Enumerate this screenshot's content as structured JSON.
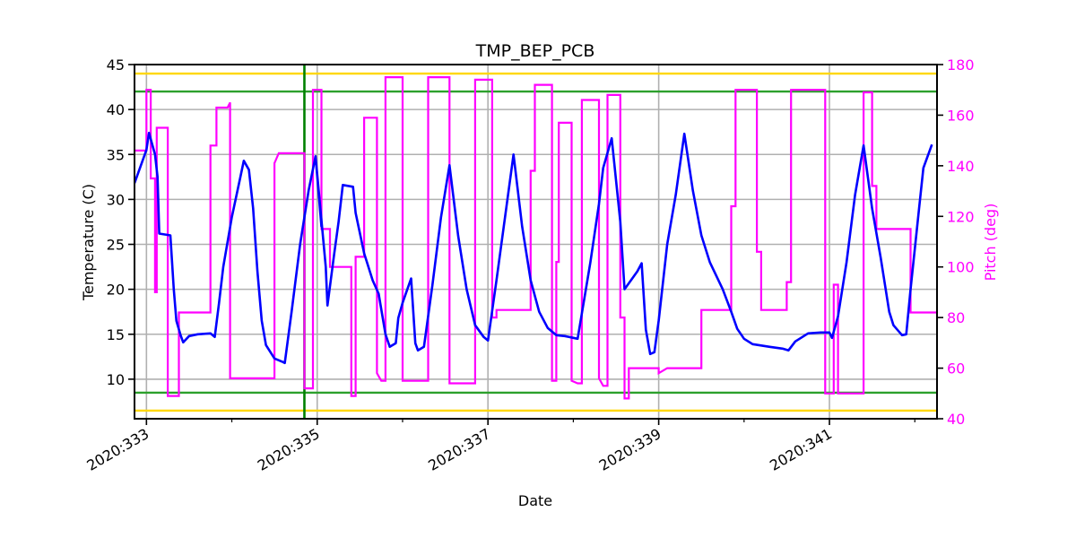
{
  "chart_data": {
    "type": "line",
    "title": "TMP_BEP_PCB",
    "xlabel": "Date",
    "ylabel": "Temperature (C)",
    "ylabel_right": "Pitch (deg)",
    "xlim": [
      332.86,
      342.26
    ],
    "ylim": [
      5.6,
      45
    ],
    "ylim_right": [
      40,
      180
    ],
    "grid": true,
    "legend": null,
    "x_ticks": [
      {
        "value": 333,
        "label": "2020:333"
      },
      {
        "value": 335,
        "label": "2020:335"
      },
      {
        "value": 337,
        "label": "2020:337"
      },
      {
        "value": 339,
        "label": "2020:339"
      },
      {
        "value": 341,
        "label": "2020:341"
      }
    ],
    "x_minor_ticks": [
      334,
      336,
      338,
      340,
      342
    ],
    "y_ticks": [
      10,
      15,
      20,
      25,
      30,
      35,
      40,
      45
    ],
    "y_ticks_right": [
      40,
      60,
      80,
      100,
      120,
      140,
      160,
      180
    ],
    "reference_lines": [
      {
        "name": "yellow-limit-high",
        "axis": "y",
        "value": 44.0,
        "color": "#ffd700"
      },
      {
        "name": "green-limit-high",
        "axis": "y",
        "value": 42.0,
        "color": "#2ca02c"
      },
      {
        "name": "green-limit-low",
        "axis": "y",
        "value": 8.5,
        "color": "#2ca02c"
      },
      {
        "name": "yellow-limit-low",
        "axis": "y",
        "value": 6.5,
        "color": "#ffd700"
      },
      {
        "name": "now-marker",
        "axis": "x",
        "value": 334.85,
        "color": "#008000"
      }
    ],
    "series": [
      {
        "name": "TMP_BEP_PCB",
        "axis": "left",
        "color": "#0000ff",
        "points": [
          [
            332.86,
            31.8
          ],
          [
            333.0,
            35.5
          ],
          [
            333.03,
            37.4
          ],
          [
            333.1,
            35.0
          ],
          [
            333.13,
            32.5
          ],
          [
            333.15,
            26.2
          ],
          [
            333.28,
            26.0
          ],
          [
            333.32,
            20.0
          ],
          [
            333.35,
            16.5
          ],
          [
            333.4,
            14.9
          ],
          [
            333.43,
            14.1
          ],
          [
            333.5,
            14.8
          ],
          [
            333.6,
            15.0
          ],
          [
            333.75,
            15.1
          ],
          [
            333.8,
            14.7
          ],
          [
            333.85,
            18.5
          ],
          [
            333.9,
            22.5
          ],
          [
            334.0,
            28.0
          ],
          [
            334.1,
            32.5
          ],
          [
            334.14,
            34.3
          ],
          [
            334.2,
            33.3
          ],
          [
            334.25,
            29.0
          ],
          [
            334.3,
            22.0
          ],
          [
            334.35,
            16.5
          ],
          [
            334.4,
            13.8
          ],
          [
            334.5,
            12.3
          ],
          [
            334.6,
            11.9
          ],
          [
            334.62,
            11.8
          ],
          [
            334.7,
            17.5
          ],
          [
            334.8,
            25.0
          ],
          [
            334.9,
            31.0
          ],
          [
            334.98,
            34.8
          ],
          [
            335.05,
            27.0
          ],
          [
            334.98,
            34.8
          ],
          [
            335.1,
            22.5
          ],
          [
            335.12,
            18.2
          ],
          [
            335.2,
            24.0
          ],
          [
            335.25,
            27.5
          ],
          [
            335.3,
            31.6
          ],
          [
            335.42,
            31.4
          ],
          [
            335.45,
            28.5
          ],
          [
            335.55,
            24.0
          ],
          [
            335.65,
            21.0
          ],
          [
            335.72,
            19.5
          ],
          [
            335.8,
            15.0
          ],
          [
            335.85,
            13.6
          ],
          [
            335.92,
            14.0
          ],
          [
            335.95,
            16.8
          ],
          [
            336.0,
            18.5
          ],
          [
            336.1,
            21.2
          ],
          [
            336.15,
            14.0
          ],
          [
            336.18,
            13.2
          ],
          [
            336.25,
            13.6
          ],
          [
            336.35,
            20.5
          ],
          [
            336.45,
            28.0
          ],
          [
            336.55,
            33.8
          ],
          [
            336.65,
            26.0
          ],
          [
            336.75,
            20.0
          ],
          [
            336.85,
            16.0
          ],
          [
            336.95,
            14.7
          ],
          [
            337.0,
            14.3
          ],
          [
            337.1,
            21.0
          ],
          [
            337.2,
            28.0
          ],
          [
            337.3,
            35.0
          ],
          [
            337.4,
            27.0
          ],
          [
            337.5,
            21.0
          ],
          [
            337.6,
            17.5
          ],
          [
            337.7,
            15.7
          ],
          [
            337.8,
            14.9
          ],
          [
            337.9,
            14.8
          ],
          [
            338.05,
            14.5
          ],
          [
            338.2,
            23.0
          ],
          [
            338.3,
            29.5
          ],
          [
            338.35,
            33.5
          ],
          [
            338.45,
            36.8
          ],
          [
            338.55,
            27.5
          ],
          [
            338.6,
            20.0
          ],
          [
            338.75,
            22.0
          ],
          [
            338.8,
            22.9
          ],
          [
            338.85,
            15.5
          ],
          [
            338.9,
            12.8
          ],
          [
            338.95,
            13.0
          ],
          [
            339.0,
            16.5
          ],
          [
            339.1,
            25.0
          ],
          [
            339.2,
            30.5
          ],
          [
            339.3,
            37.3
          ],
          [
            339.4,
            31.0
          ],
          [
            339.5,
            26.0
          ],
          [
            339.6,
            23.0
          ],
          [
            339.75,
            20.0
          ],
          [
            339.85,
            17.5
          ],
          [
            339.92,
            15.6
          ],
          [
            340.0,
            14.5
          ],
          [
            340.1,
            13.9
          ],
          [
            340.3,
            13.6
          ],
          [
            340.45,
            13.4
          ],
          [
            340.52,
            13.2
          ],
          [
            340.6,
            14.2
          ],
          [
            340.75,
            15.1
          ],
          [
            340.9,
            15.2
          ],
          [
            341.0,
            15.2
          ],
          [
            341.03,
            14.6
          ],
          [
            341.1,
            17.0
          ],
          [
            341.2,
            23.0
          ],
          [
            341.3,
            30.5
          ],
          [
            341.4,
            36.0
          ],
          [
            341.5,
            29.0
          ],
          [
            341.6,
            23.5
          ],
          [
            341.7,
            17.5
          ],
          [
            341.75,
            16.0
          ],
          [
            341.85,
            14.9
          ],
          [
            341.9,
            15.0
          ],
          [
            341.95,
            20.0
          ],
          [
            342.05,
            29.0
          ],
          [
            342.1,
            33.5
          ],
          [
            342.2,
            36.1
          ]
        ],
        "note": "approximate trace"
      },
      {
        "name": "Pitch",
        "axis": "right",
        "color": "#ff00ff",
        "points": [
          [
            332.86,
            146
          ],
          [
            333.0,
            146
          ],
          [
            333.0,
            170
          ],
          [
            333.05,
            170
          ],
          [
            333.05,
            135
          ],
          [
            333.1,
            135
          ],
          [
            333.1,
            90
          ],
          [
            333.12,
            90
          ],
          [
            333.12,
            155
          ],
          [
            333.25,
            155
          ],
          [
            333.25,
            49
          ],
          [
            333.38,
            49
          ],
          [
            333.38,
            82
          ],
          [
            333.75,
            82
          ],
          [
            333.75,
            148
          ],
          [
            333.82,
            148
          ],
          [
            333.82,
            163
          ],
          [
            333.95,
            163
          ],
          [
            333.98,
            165
          ],
          [
            333.98,
            56
          ],
          [
            334.5,
            56
          ],
          [
            334.5,
            141
          ],
          [
            334.55,
            145
          ],
          [
            334.85,
            145
          ],
          [
            334.85,
            52
          ],
          [
            334.95,
            52
          ],
          [
            334.95,
            170
          ],
          [
            335.05,
            170
          ],
          [
            335.05,
            115
          ],
          [
            335.15,
            115
          ],
          [
            335.15,
            100
          ],
          [
            335.4,
            100
          ],
          [
            335.4,
            49
          ],
          [
            335.45,
            49
          ],
          [
            335.45,
            104
          ],
          [
            335.55,
            104
          ],
          [
            335.55,
            159
          ],
          [
            335.7,
            159
          ],
          [
            335.7,
            58
          ],
          [
            335.75,
            55
          ],
          [
            335.8,
            55
          ],
          [
            335.8,
            175
          ],
          [
            336.0,
            175
          ],
          [
            336.0,
            55
          ],
          [
            336.3,
            55
          ],
          [
            336.3,
            175
          ],
          [
            336.55,
            175
          ],
          [
            336.55,
            54
          ],
          [
            336.85,
            54
          ],
          [
            336.85,
            174
          ],
          [
            337.05,
            174
          ],
          [
            337.05,
            80
          ],
          [
            337.1,
            80
          ],
          [
            337.1,
            83
          ],
          [
            337.5,
            83
          ],
          [
            337.5,
            138
          ],
          [
            337.55,
            138
          ],
          [
            337.55,
            172
          ],
          [
            337.75,
            172
          ],
          [
            337.75,
            55
          ],
          [
            337.8,
            55
          ],
          [
            337.8,
            102
          ],
          [
            337.83,
            102
          ],
          [
            337.83,
            157
          ],
          [
            337.98,
            157
          ],
          [
            337.98,
            55
          ],
          [
            338.05,
            54
          ],
          [
            338.1,
            54
          ],
          [
            338.1,
            166
          ],
          [
            338.3,
            166
          ],
          [
            338.3,
            56
          ],
          [
            338.35,
            53
          ],
          [
            338.4,
            53
          ],
          [
            338.4,
            168
          ],
          [
            338.55,
            168
          ],
          [
            338.55,
            80
          ],
          [
            338.6,
            80
          ],
          [
            338.6,
            48
          ],
          [
            338.65,
            48
          ],
          [
            338.65,
            60
          ],
          [
            339.0,
            60
          ],
          [
            339.0,
            58
          ],
          [
            339.1,
            60
          ],
          [
            339.5,
            60
          ],
          [
            339.5,
            83
          ],
          [
            339.85,
            83
          ],
          [
            339.85,
            124
          ],
          [
            339.9,
            124
          ],
          [
            339.9,
            170
          ],
          [
            340.15,
            170
          ],
          [
            340.15,
            106
          ],
          [
            340.2,
            106
          ],
          [
            340.2,
            83
          ],
          [
            340.5,
            83
          ],
          [
            340.5,
            94
          ],
          [
            340.55,
            94
          ],
          [
            340.55,
            170
          ],
          [
            340.95,
            170
          ],
          [
            340.95,
            50
          ],
          [
            341.0,
            50
          ],
          [
            341.0,
            50
          ],
          [
            341.05,
            50
          ],
          [
            341.05,
            93
          ],
          [
            341.1,
            93
          ],
          [
            341.1,
            50
          ],
          [
            341.4,
            50
          ],
          [
            341.4,
            169
          ],
          [
            341.5,
            169
          ],
          [
            341.5,
            132
          ],
          [
            341.55,
            132
          ],
          [
            341.55,
            115
          ],
          [
            341.95,
            115
          ],
          [
            341.95,
            82
          ],
          [
            342.26,
            82
          ]
        ],
        "note": "approximate step trace"
      }
    ]
  }
}
